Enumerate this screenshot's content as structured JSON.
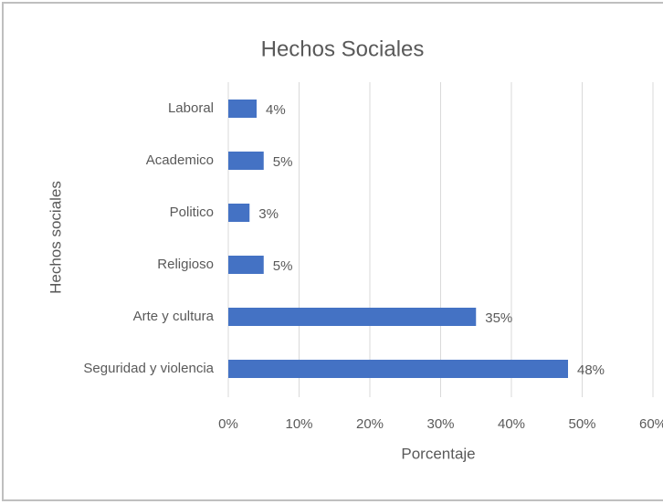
{
  "chart_data": {
    "type": "hbar",
    "title": "Hechos  Sociales",
    "x_label": "Porcentaje",
    "y_label": "Hechos sociales",
    "categories": [
      "Laboral",
      "Academico",
      "Politico",
      "Religioso",
      "Arte y cultura",
      "Seguridad y violencia"
    ],
    "values": [
      4,
      5,
      3,
      5,
      35,
      48
    ],
    "value_labels": [
      "4%",
      "5%",
      "3%",
      "5%",
      "35%",
      "48%"
    ],
    "color": "#4472c4",
    "xlim": [
      0,
      60
    ],
    "xticks": [
      {
        "value": 0,
        "label": "0%"
      },
      {
        "value": 10,
        "label": "10%"
      },
      {
        "value": 20,
        "label": "20%"
      },
      {
        "value": 30,
        "label": "30%"
      },
      {
        "value": 40,
        "label": "40%"
      },
      {
        "value": 50,
        "label": "50%"
      },
      {
        "value": 60,
        "label": "60%"
      }
    ],
    "grid": true
  }
}
